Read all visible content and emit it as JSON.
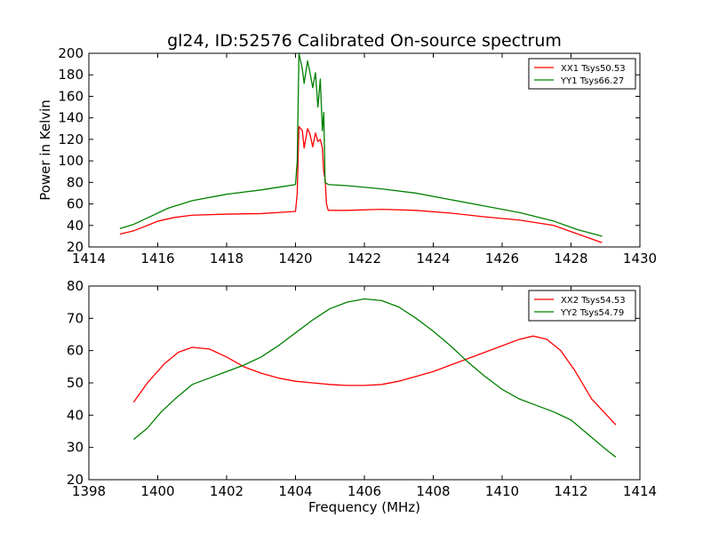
{
  "chart_data": [
    {
      "type": "line",
      "title": "gl24, ID:52576 Calibrated On-source spectrum",
      "xlabel": "",
      "ylabel": "Power in Kelvin",
      "xlim": [
        1414,
        1430
      ],
      "ylim": [
        20,
        200
      ],
      "xticks": [
        1414,
        1416,
        1418,
        1420,
        1422,
        1424,
        1426,
        1428,
        1430
      ],
      "yticks": [
        20,
        40,
        60,
        80,
        100,
        120,
        140,
        160,
        180,
        200
      ],
      "legend_position": "top-right",
      "grid": false,
      "series": [
        {
          "name": "XX1 Tsys50.53",
          "color": "#ff0000",
          "points": [
            [
              1414.9,
              32
            ],
            [
              1415.3,
              35
            ],
            [
              1415.7,
              40
            ],
            [
              1416.0,
              44
            ],
            [
              1416.5,
              47.5
            ],
            [
              1417.0,
              49.5
            ],
            [
              1418.0,
              50.5
            ],
            [
              1419.0,
              51
            ],
            [
              1419.5,
              52
            ],
            [
              1420.0,
              53
            ],
            [
              1420.05,
              70
            ],
            [
              1420.1,
              132
            ],
            [
              1420.2,
              128
            ],
            [
              1420.25,
              112
            ],
            [
              1420.35,
              130
            ],
            [
              1420.42,
              125
            ],
            [
              1420.5,
              113
            ],
            [
              1420.58,
              126
            ],
            [
              1420.65,
              118
            ],
            [
              1420.72,
              120
            ],
            [
              1420.78,
              112
            ],
            [
              1420.82,
              90
            ],
            [
              1420.86,
              83
            ],
            [
              1420.9,
              60
            ],
            [
              1420.95,
              54
            ],
            [
              1421.5,
              54
            ],
            [
              1422.5,
              55
            ],
            [
              1423.5,
              54
            ],
            [
              1424.5,
              51.5
            ],
            [
              1425.5,
              48
            ],
            [
              1426.5,
              45
            ],
            [
              1427.5,
              40
            ],
            [
              1428.2,
              32
            ],
            [
              1428.9,
              24
            ]
          ]
        },
        {
          "name": "YY1 Tsys66.27",
          "color": "#008000",
          "points": [
            [
              1414.9,
              37
            ],
            [
              1415.3,
              41
            ],
            [
              1415.7,
              47
            ],
            [
              1416.3,
              56
            ],
            [
              1417.0,
              63
            ],
            [
              1418.0,
              69
            ],
            [
              1419.0,
              73
            ],
            [
              1419.6,
              76
            ],
            [
              1420.0,
              78
            ],
            [
              1420.05,
              100
            ],
            [
              1420.1,
              200
            ],
            [
              1420.2,
              185
            ],
            [
              1420.25,
              172
            ],
            [
              1420.35,
              193
            ],
            [
              1420.42,
              182
            ],
            [
              1420.5,
              168
            ],
            [
              1420.58,
              182
            ],
            [
              1420.65,
              150
            ],
            [
              1420.72,
              176
            ],
            [
              1420.78,
              128
            ],
            [
              1420.82,
              145
            ],
            [
              1420.86,
              80
            ],
            [
              1420.95,
              78
            ],
            [
              1421.5,
              77
            ],
            [
              1422.5,
              74
            ],
            [
              1423.5,
              70
            ],
            [
              1424.5,
              64
            ],
            [
              1425.5,
              58
            ],
            [
              1426.5,
              52
            ],
            [
              1427.5,
              44
            ],
            [
              1428.2,
              36
            ],
            [
              1428.9,
              30
            ]
          ]
        }
      ]
    },
    {
      "type": "line",
      "title": "",
      "xlabel": "Frequency (MHz)",
      "ylabel": "",
      "xlim": [
        1398,
        1414
      ],
      "ylim": [
        20,
        80
      ],
      "xticks": [
        1398,
        1400,
        1402,
        1404,
        1406,
        1408,
        1410,
        1412,
        1414
      ],
      "yticks": [
        20,
        30,
        40,
        50,
        60,
        70,
        80
      ],
      "legend_position": "top-right",
      "grid": false,
      "series": [
        {
          "name": "XX2 Tsys54.53",
          "color": "#ff0000",
          "points": [
            [
              1399.3,
              44
            ],
            [
              1399.7,
              50
            ],
            [
              1400.2,
              56
            ],
            [
              1400.6,
              59.5
            ],
            [
              1401.0,
              61
            ],
            [
              1401.5,
              60.5
            ],
            [
              1402.0,
              58
            ],
            [
              1402.5,
              55
            ],
            [
              1403.0,
              53
            ],
            [
              1403.5,
              51.5
            ],
            [
              1404.0,
              50.5
            ],
            [
              1404.5,
              50
            ],
            [
              1405.0,
              49.5
            ],
            [
              1405.5,
              49.2
            ],
            [
              1406.0,
              49.2
            ],
            [
              1406.5,
              49.5
            ],
            [
              1407.0,
              50.5
            ],
            [
              1407.5,
              52
            ],
            [
              1408.0,
              53.5
            ],
            [
              1408.5,
              55.5
            ],
            [
              1409.0,
              57.5
            ],
            [
              1409.5,
              59.5
            ],
            [
              1410.0,
              61.5
            ],
            [
              1410.5,
              63.5
            ],
            [
              1410.9,
              64.5
            ],
            [
              1411.3,
              63.5
            ],
            [
              1411.7,
              60
            ],
            [
              1412.1,
              54
            ],
            [
              1412.6,
              45
            ],
            [
              1413.3,
              37
            ]
          ]
        },
        {
          "name": "YY2 Tsys54.79",
          "color": "#008000",
          "points": [
            [
              1399.3,
              32.5
            ],
            [
              1399.7,
              36
            ],
            [
              1400.1,
              41
            ],
            [
              1400.5,
              45
            ],
            [
              1401.0,
              49.5
            ],
            [
              1401.5,
              51.5
            ],
            [
              1402.0,
              53.5
            ],
            [
              1402.5,
              55.5
            ],
            [
              1403.0,
              58
            ],
            [
              1403.5,
              61.5
            ],
            [
              1404.0,
              65.5
            ],
            [
              1404.5,
              69.5
            ],
            [
              1405.0,
              73
            ],
            [
              1405.5,
              75
            ],
            [
              1406.0,
              76
            ],
            [
              1406.5,
              75.5
            ],
            [
              1407.0,
              73.5
            ],
            [
              1407.5,
              70
            ],
            [
              1408.0,
              66
            ],
            [
              1408.5,
              61.5
            ],
            [
              1409.0,
              56.5
            ],
            [
              1409.5,
              52
            ],
            [
              1410.0,
              48
            ],
            [
              1410.5,
              45
            ],
            [
              1411.0,
              43
            ],
            [
              1411.5,
              41
            ],
            [
              1412.0,
              38.5
            ],
            [
              1412.5,
              34
            ],
            [
              1413.0,
              29.5
            ],
            [
              1413.3,
              27
            ]
          ]
        }
      ]
    }
  ]
}
